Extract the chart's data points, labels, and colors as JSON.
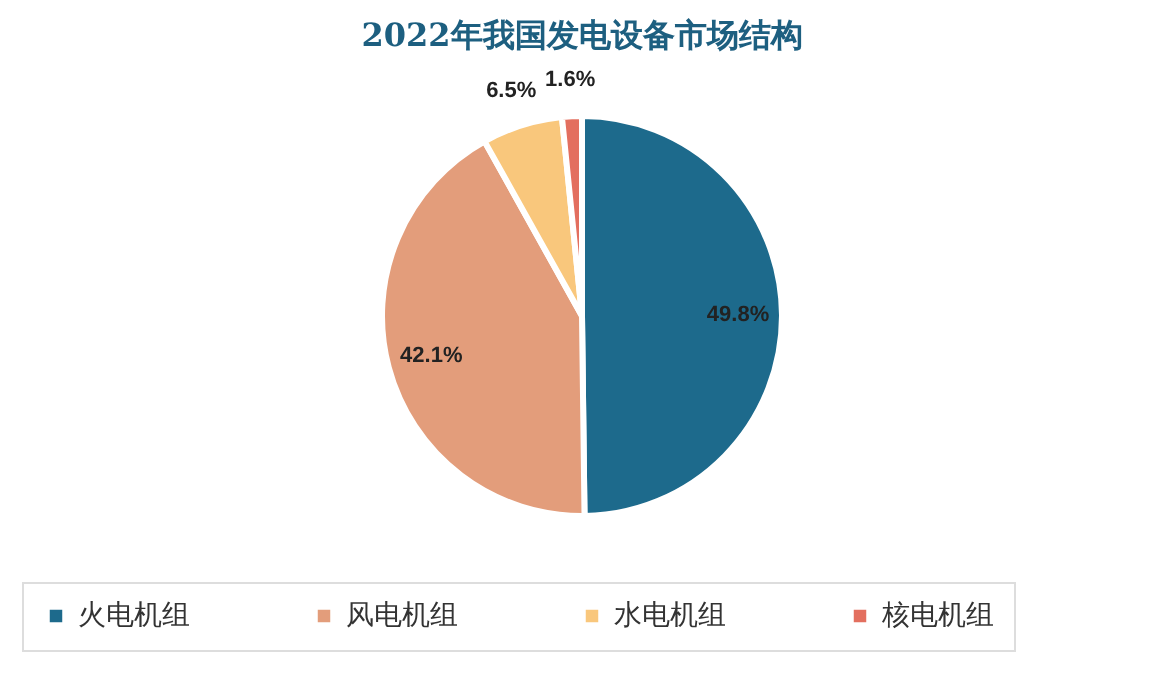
{
  "chart_data": {
    "type": "pie",
    "title": "2022年我国发电设备市场结构",
    "categories": [
      "火电机组",
      "风电机组",
      "水电机组",
      "核电机组"
    ],
    "values": [
      49.8,
      42.1,
      6.5,
      1.6
    ],
    "colors": [
      "#1d6a8c",
      "#e39d7b",
      "#f9c77c",
      "#e36f5f"
    ],
    "value_labels": [
      "49.8%",
      "42.1%",
      "6.5%",
      "1.6%"
    ],
    "legend": "bottom"
  }
}
